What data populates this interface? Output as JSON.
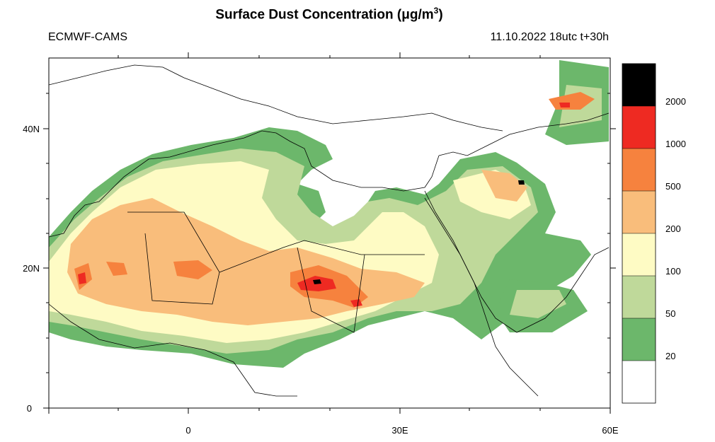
{
  "title": {
    "main": "Surface Dust Concentration (",
    "unit_mu": "μ",
    "unit_rest": "g/m",
    "unit_sup": "3",
    "close": ")"
  },
  "model": "ECMWF-CAMS",
  "valid_time": "11.10.2022 18utc t+30h",
  "axes": {
    "lat_ticks": [
      "40N",
      "20N",
      "0"
    ],
    "lon_ticks": [
      "0",
      "30E",
      "60E"
    ]
  },
  "legend": {
    "levels": [
      {
        "label": "2000",
        "color": "#000000"
      },
      {
        "label": "1000",
        "color": "#ee2a22"
      },
      {
        "label": "500",
        "color": "#f6823e"
      },
      {
        "label": "200",
        "color": "#f9bd7b"
      },
      {
        "label": "100",
        "color": "#fefbc4"
      },
      {
        "label": "50",
        "color": "#bfd99a"
      },
      {
        "label": "20",
        "color": "#6cb76b"
      },
      {
        "label": "",
        "color": "#ffffff"
      }
    ]
  },
  "colors": {
    "land_outline": "#000000",
    "background": "#ffffff"
  }
}
